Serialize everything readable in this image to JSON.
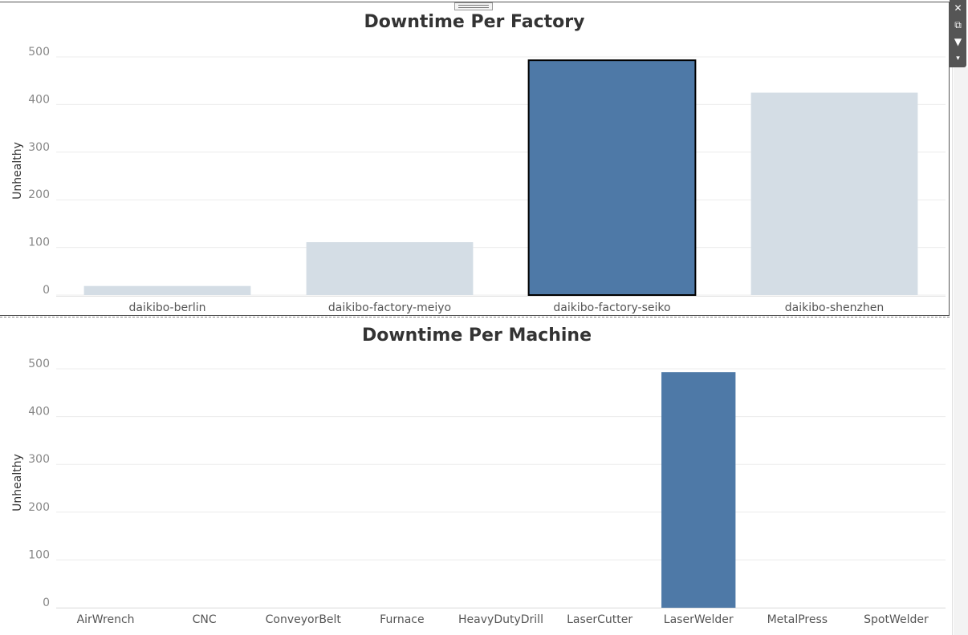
{
  "colors": {
    "highlight": "#4e79a7",
    "muted": "#d4dde5",
    "text": "#333333",
    "tick": "#888888"
  },
  "toolbar": {
    "close_icon": "close-icon",
    "popout_icon": "popout-icon",
    "filter_icon": "filter-icon",
    "menu_icon": "dropdown-icon"
  },
  "chart_data": [
    {
      "type": "bar",
      "title": "Downtime Per Factory",
      "xlabel": "",
      "ylabel": "Unhealthy",
      "ylim": [
        0,
        500
      ],
      "yticks": [
        0,
        100,
        200,
        300,
        400,
        500
      ],
      "categories": [
        "daikibo-berlin",
        "daikibo-factory-meiyo",
        "daikibo-factory-seiko",
        "daikibo-shenzhen"
      ],
      "values": [
        19,
        111,
        493,
        425
      ],
      "highlight": [
        false,
        false,
        true,
        false
      ],
      "selected": [
        false,
        false,
        true,
        false
      ],
      "grid": true
    },
    {
      "type": "bar",
      "title": "Downtime Per Machine",
      "xlabel": "",
      "ylabel": "Unhealthy",
      "ylim": [
        0,
        500
      ],
      "yticks": [
        0,
        100,
        200,
        300,
        400,
        500
      ],
      "categories": [
        "AirWrench",
        "CNC",
        "ConveyorBelt",
        "Furnace",
        "HeavyDutyDrill",
        "LaserCutter",
        "LaserWelder",
        "MetalPress",
        "SpotWelder"
      ],
      "values": [
        0,
        0,
        0,
        0,
        0,
        0,
        493,
        0,
        0
      ],
      "highlight": [
        false,
        false,
        false,
        false,
        false,
        false,
        true,
        false,
        false
      ],
      "selected": [
        false,
        false,
        false,
        false,
        false,
        false,
        false,
        false,
        false
      ],
      "grid": true
    }
  ]
}
